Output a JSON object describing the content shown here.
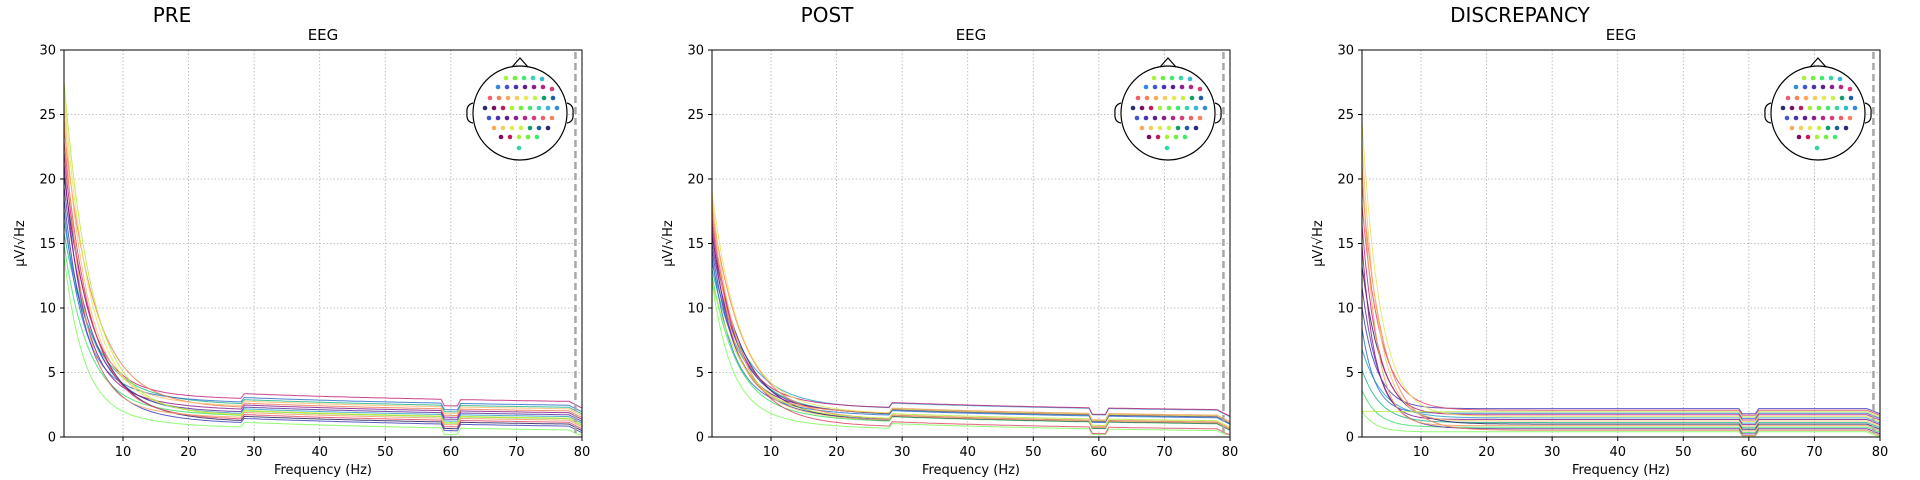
{
  "chart_data": [
    {
      "type": "line",
      "title": "PRE",
      "subtitle": "EEG",
      "xlabel": "Frequency (Hz)",
      "ylabel": "µV/√Hz",
      "xlim": [
        1,
        80
      ],
      "ylim": [
        0,
        30
      ],
      "xticks": [
        10,
        20,
        30,
        40,
        50,
        60,
        70,
        80
      ],
      "yticks": [
        0,
        5,
        10,
        15,
        20,
        25,
        30
      ],
      "grid": true,
      "legend": "sensor-topomap top-right",
      "vline": 79,
      "x": [
        1,
        2,
        3,
        4,
        5,
        6,
        8,
        10,
        12,
        15,
        18,
        20,
        25,
        30,
        35,
        40,
        45,
        50,
        55,
        59,
        60,
        61,
        65,
        70,
        75,
        78,
        79,
        80
      ],
      "series_summary": {
        "count": 16,
        "peak_range_at_1hz": [
          14,
          28
        ],
        "value_at_30hz_range": [
          1.0,
          2.6
        ],
        "value_at_75hz_range": [
          0.6,
          1.9
        ],
        "notch_hz": 60
      }
    },
    {
      "type": "line",
      "title": "POST",
      "subtitle": "EEG",
      "xlabel": "Frequency (Hz)",
      "ylabel": "µV/√Hz",
      "xlim": [
        1,
        80
      ],
      "ylim": [
        0,
        30
      ],
      "xticks": [
        10,
        20,
        30,
        40,
        50,
        60,
        70,
        80
      ],
      "yticks": [
        0,
        5,
        10,
        15,
        20,
        25,
        30
      ],
      "grid": true,
      "legend": "sensor-topomap top-right",
      "vline": 79,
      "x": [
        1,
        2,
        3,
        4,
        5,
        6,
        8,
        10,
        12,
        15,
        18,
        20,
        25,
        30,
        35,
        40,
        45,
        50,
        55,
        59,
        60,
        61,
        65,
        70,
        75,
        78,
        79,
        80
      ],
      "series_summary": {
        "count": 16,
        "peak_range_at_1hz": [
          12,
          19
        ],
        "value_at_30hz_range": [
          0.8,
          2.0
        ],
        "value_at_75hz_range": [
          0.6,
          1.7
        ],
        "notch_hz": 60
      }
    },
    {
      "type": "line",
      "title": "DISCREPANCY",
      "subtitle": "EEG",
      "xlabel": "Frequency (Hz)",
      "ylabel": "µV/√Hz",
      "xlim": [
        1,
        80
      ],
      "ylim": [
        0,
        30
      ],
      "xticks": [
        10,
        20,
        30,
        40,
        50,
        60,
        70,
        80
      ],
      "yticks": [
        0,
        5,
        10,
        15,
        20,
        25,
        30
      ],
      "grid": true,
      "legend": "sensor-topomap top-right",
      "vline": 79,
      "x": [
        1,
        2,
        3,
        4,
        5,
        6,
        8,
        10,
        12,
        15,
        18,
        20,
        25,
        30,
        35,
        40,
        45,
        50,
        55,
        59,
        60,
        61,
        65,
        70,
        75,
        78,
        79,
        80
      ],
      "series_summary": {
        "count": 16,
        "peak_range_at_1hz": [
          2,
          26
        ],
        "value_at_30hz_range": [
          0.3,
          2.6
        ],
        "value_at_75hz_range": [
          0.3,
          1.7
        ],
        "notch_hz": 60
      }
    }
  ],
  "colors": {
    "grid": "#b0b0b0",
    "axis": "#000000",
    "vline": "#a8a8a8",
    "series_palette": [
      "#7CFC5A",
      "#3DE06A",
      "#1FB78A",
      "#2AA0C8",
      "#2E6FD0",
      "#3F3FB8",
      "#5B2E9E",
      "#2B2060",
      "#8B1A8B",
      "#C2257A",
      "#E0486A",
      "#F07B55",
      "#F5A05A",
      "#F7C070",
      "#E7E35A",
      "#B6EB3C"
    ]
  },
  "topomap": {
    "icon": "head-topomap-icon",
    "dot_colors": [
      "#A6F23A",
      "#6CF03C",
      "#3FEA70",
      "#33D6A8",
      "#2FB9D2",
      "#3388E0",
      "#3F55D4",
      "#4A2FB5",
      "#5A1F8C",
      "#8A1F8A",
      "#B52682",
      "#D8397A",
      "#EE5C6E",
      "#F7805C",
      "#F7A85B",
      "#F4CB5E",
      "#E8E857",
      "#C7F04A",
      "#0E9E6A",
      "#1C5F9E",
      "#2A2A70",
      "#7A0E5C",
      "#C21A5A"
    ]
  }
}
